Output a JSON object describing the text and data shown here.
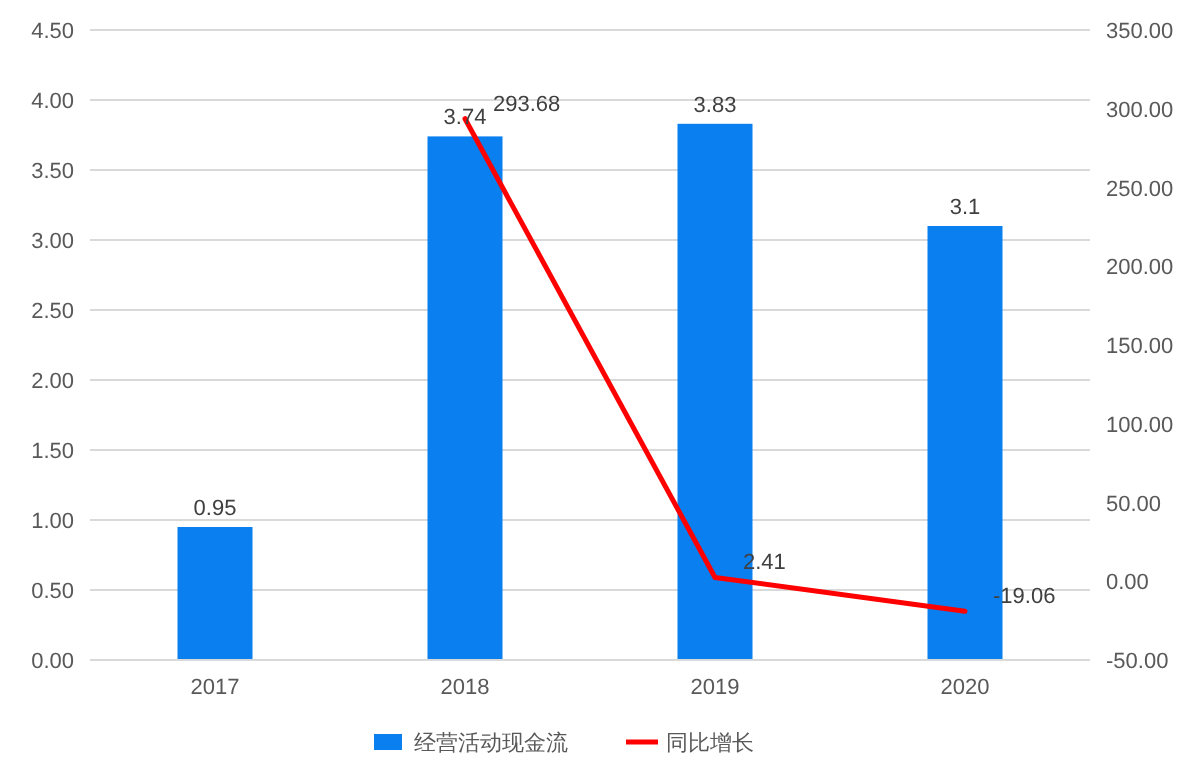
{
  "chart_data": {
    "type": "bar",
    "categories": [
      "2017",
      "2018",
      "2019",
      "2020"
    ],
    "series": [
      {
        "name": "经营活动现金流",
        "color": "#0a7ff0",
        "values": [
          0.95,
          3.74,
          3.83,
          3.1
        ]
      },
      {
        "name": "同比增长",
        "type": "line",
        "axis": "y2",
        "color": "#ff0000",
        "values": [
          null,
          293.68,
          2.41,
          -19.06
        ]
      }
    ],
    "ylim": [
      0,
      4.5
    ],
    "yticks": [
      {
        "value": 0,
        "label": "0.00"
      },
      {
        "value": 0.5,
        "label": "0.50"
      },
      {
        "value": 1,
        "label": "1.00"
      },
      {
        "value": 1.5,
        "label": "1.50"
      },
      {
        "value": 2,
        "label": "2.00"
      },
      {
        "value": 2.5,
        "label": "2.50"
      },
      {
        "value": 3,
        "label": "3.00"
      },
      {
        "value": 3.5,
        "label": "3.50"
      },
      {
        "value": 4,
        "label": "4.00"
      },
      {
        "value": 4.5,
        "label": "4.50"
      }
    ],
    "y2lim": [
      -50,
      350
    ],
    "y2ticks": [
      {
        "value": -50,
        "label": "-50.00"
      },
      {
        "value": 0,
        "label": "0.00"
      },
      {
        "value": 50,
        "label": "50.00"
      },
      {
        "value": 100,
        "label": "100.00"
      },
      {
        "value": 150,
        "label": "150.00"
      },
      {
        "value": 200,
        "label": "200.00"
      },
      {
        "value": 250,
        "label": "250.00"
      },
      {
        "value": 300,
        "label": "300.00"
      },
      {
        "value": 350,
        "label": "350.00"
      }
    ],
    "grid": "y",
    "legend": "bottom",
    "data_labels": true,
    "marker": "none",
    "line_style": "solid"
  }
}
